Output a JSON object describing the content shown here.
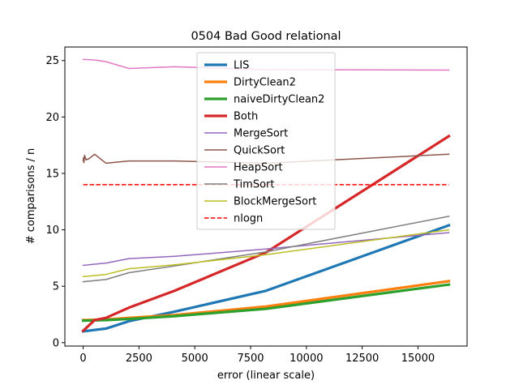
{
  "chart_data": {
    "type": "line",
    "title": "0504 Bad Good relational",
    "xlabel": "error (linear scale)",
    "ylabel": "# comparisons / n",
    "xlim": [
      -820,
      17200
    ],
    "ylim": [
      -0.3,
      26.2
    ],
    "xticks": [
      0,
      2500,
      5000,
      7500,
      10000,
      12500,
      15000
    ],
    "yticks": [
      0,
      5,
      10,
      15,
      20,
      25
    ],
    "legend_position": "upper-center",
    "grid": false,
    "series": [
      {
        "name": "LIS",
        "color": "#1f77b4",
        "width": 3.2,
        "x": [
          0,
          1024,
          2048,
          4096,
          8192,
          16384
        ],
        "y": [
          1.0,
          1.25,
          1.9,
          2.75,
          4.6,
          10.4
        ]
      },
      {
        "name": "DirtyClean2",
        "color": "#ff7f0e",
        "width": 3.2,
        "x": [
          0,
          1024,
          2048,
          4096,
          8192,
          16384
        ],
        "y": [
          2.0,
          2.05,
          2.2,
          2.45,
          3.2,
          5.45
        ]
      },
      {
        "name": "naiveDirtyClean2",
        "color": "#2ca02c",
        "width": 3.2,
        "x": [
          0,
          1024,
          2048,
          4096,
          8192,
          16384
        ],
        "y": [
          1.95,
          2.0,
          2.1,
          2.35,
          3.0,
          5.15
        ]
      },
      {
        "name": "Both",
        "color": "#d62728",
        "width": 3.2,
        "x": [
          0,
          512,
          1024,
          2048,
          4096,
          8192,
          16384
        ],
        "y": [
          1.05,
          2.0,
          2.2,
          3.1,
          4.6,
          8.0,
          18.3
        ]
      },
      {
        "name": "MergeSort",
        "color": "#9467bd",
        "width": 1.5,
        "x": [
          0,
          512,
          1024,
          2048,
          4096,
          8192,
          16384
        ],
        "y": [
          6.85,
          6.95,
          7.05,
          7.45,
          7.65,
          8.3,
          9.75
        ]
      },
      {
        "name": "QuickSort",
        "color": "#8c564b",
        "width": 1.5,
        "x": [
          0,
          16,
          32,
          64,
          128,
          256,
          512,
          1024,
          2048,
          4096,
          8192,
          16384
        ],
        "y": [
          16.1,
          16.4,
          15.95,
          16.6,
          16.2,
          16.3,
          16.7,
          15.9,
          16.1,
          16.1,
          15.9,
          16.7
        ]
      },
      {
        "name": "HeapSort",
        "color": "#e377c2",
        "width": 1.5,
        "x": [
          0,
          512,
          1024,
          2048,
          4096,
          8192,
          16384
        ],
        "y": [
          25.1,
          25.05,
          24.9,
          24.3,
          24.45,
          24.2,
          24.15
        ]
      },
      {
        "name": "TimSort",
        "color": "#7f7f7f",
        "width": 1.5,
        "x": [
          0,
          512,
          1024,
          2048,
          4096,
          8192,
          16384
        ],
        "y": [
          5.4,
          5.5,
          5.6,
          6.2,
          6.8,
          8.05,
          11.2
        ]
      },
      {
        "name": "BlockMergeSort",
        "color": "#bcbd22",
        "width": 1.5,
        "x": [
          0,
          512,
          1024,
          2048,
          4096,
          8192,
          16384
        ],
        "y": [
          5.85,
          5.95,
          6.05,
          6.55,
          6.9,
          7.8,
          10.0
        ]
      },
      {
        "name": "nlogn",
        "color": "#ff0000",
        "width": 1.5,
        "dashed": true,
        "x": [
          0,
          16384
        ],
        "y": [
          14.0,
          14.0
        ]
      }
    ]
  }
}
